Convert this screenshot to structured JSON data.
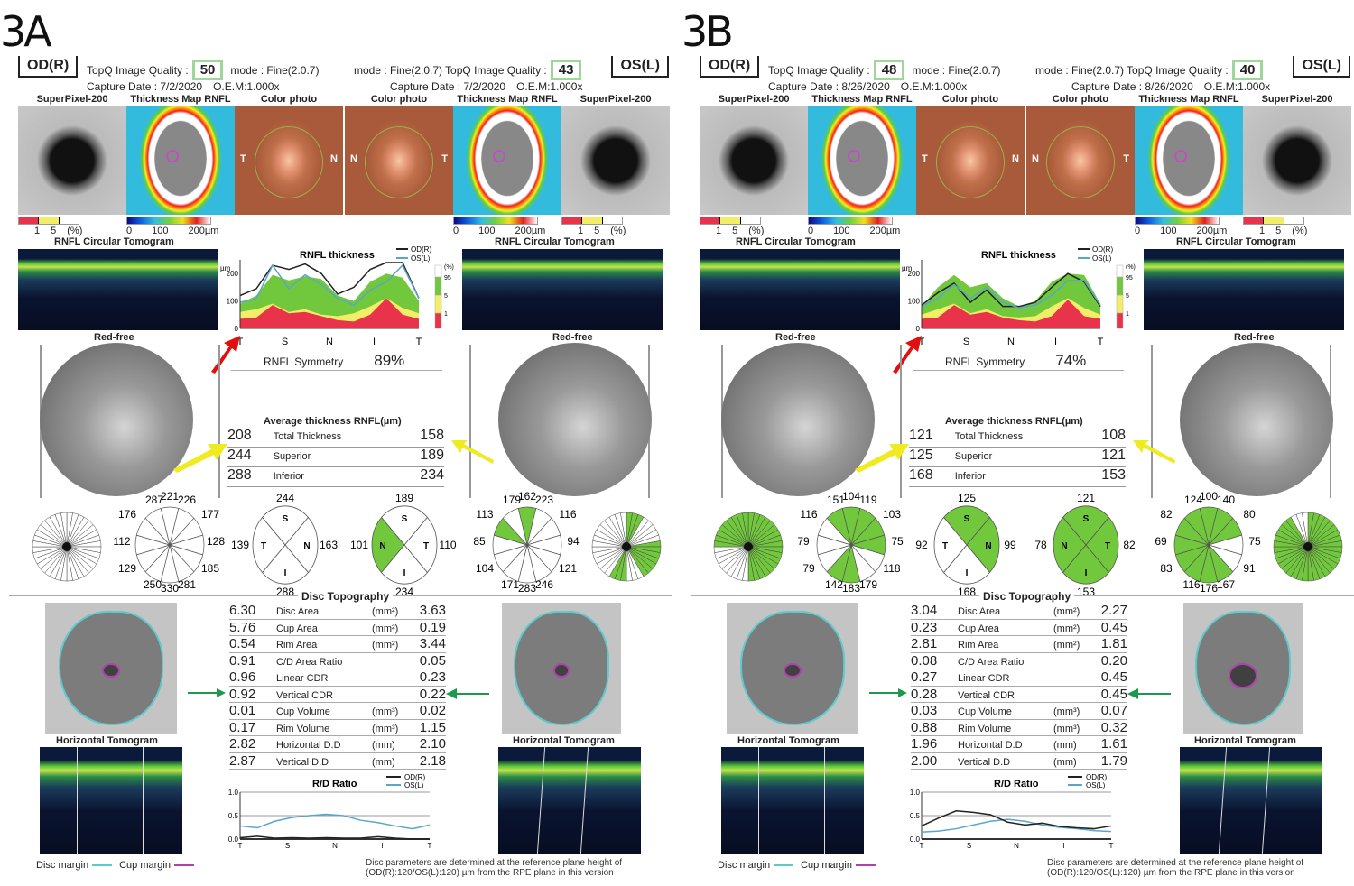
{
  "panels": [
    {
      "id": "A",
      "label": "3A",
      "od": {
        "eye": "OD(R)",
        "quality_label": "TopQ Image Quality :",
        "quality": "50",
        "mode": "mode : Fine(2.0.7)",
        "capture": "Capture Date : 7/2/2020",
        "oem": "O.E.M:1.000x"
      },
      "os": {
        "eye": "OS(L)",
        "quality_label": "TopQ Image Quality :",
        "quality": "43",
        "mode": "mode : Fine(2.0.7)",
        "capture": "Capture Date : 7/2/2020",
        "oem": "O.E.M:1.000x"
      },
      "image_titles": [
        "SuperPixel-200",
        "Thickness Map RNFL",
        "Color photo",
        "Color photo",
        "Thickness Map RNFL",
        "SuperPixel-200"
      ],
      "photo_marks": {
        "od_left": "T",
        "od_right": "N",
        "os_left": "N",
        "os_right": "T"
      },
      "scale_pct": [
        "1",
        "5",
        "(%)"
      ],
      "scale_um": [
        "0",
        "100",
        "200µm"
      ],
      "tomogram_title": "RNFL Circular Tomogram",
      "redfree_title": "Red-free",
      "rnfl_chart": {
        "title": "RNFL thickness",
        "legend": [
          "OD(R)",
          "OS(L)"
        ],
        "yunit": "µm",
        "yticks": [
          "200",
          "100",
          "0"
        ],
        "xticks": [
          "T",
          "S",
          "N",
          "I",
          "T"
        ],
        "pct_labels": [
          "(%)",
          "95",
          "5",
          "1"
        ],
        "od": [
          120,
          145,
          230,
          215,
          235,
          200,
          125,
          150,
          215,
          260,
          250,
          110
        ],
        "os": [
          95,
          110,
          230,
          145,
          195,
          160,
          110,
          85,
          140,
          170,
          230,
          110
        ],
        "normal_upper": [
          90,
          120,
          195,
          175,
          190,
          180,
          120,
          100,
          170,
          200,
          185,
          100
        ],
        "normal_lower": [
          60,
          70,
          90,
          60,
          70,
          50,
          45,
          55,
          80,
          110,
          75,
          55
        ],
        "red_top": [
          35,
          40,
          85,
          55,
          60,
          45,
          30,
          25,
          50,
          110,
          50,
          35
        ]
      },
      "symmetry_label": "RNFL Symmetry",
      "symmetry": "89%",
      "avg": {
        "title": "Average thickness RNFL(µm)",
        "rows": [
          {
            "od": "208",
            "label": "Total Thickness",
            "os": "158"
          },
          {
            "od": "244",
            "label": "Superior",
            "os": "189"
          },
          {
            "od": "288",
            "label": "Inferior",
            "os": "234"
          }
        ]
      },
      "sectors": {
        "od12": {
          "top": [
            "287",
            "221",
            "226"
          ],
          "right": [
            "177",
            "128",
            "185"
          ],
          "bottom": [
            "250",
            "330",
            "281"
          ],
          "left": [
            "176",
            "112",
            "129"
          ]
        },
        "od4": {
          "S": "244",
          "T": "139",
          "N": "163",
          "I": "288",
          "letters": [
            "S",
            "T",
            "N",
            "I"
          ]
        },
        "os4": {
          "S": "189",
          "N": "101",
          "T": "110",
          "I": "234",
          "letters": [
            "S",
            "N",
            "T",
            "I"
          ]
        },
        "os12": {
          "top": [
            "179",
            "162",
            "223"
          ],
          "right": [
            "116",
            "94",
            "121"
          ],
          "bottom": [
            "171",
            "283",
            "246"
          ],
          "left": [
            "113",
            "85",
            "104"
          ]
        },
        "od12_green": [],
        "od4_green": [],
        "os4_green": [
          "N"
        ],
        "os12_green": [
          0,
          10
        ],
        "od36_green": [],
        "os36_green": [
          0,
          1,
          2,
          8,
          9,
          10,
          11,
          12,
          13,
          14,
          18,
          19,
          20
        ]
      },
      "disc": {
        "title": "Disc Topography",
        "rows": [
          {
            "od": "6.30",
            "label": "Disc Area",
            "unit": "(mm²)",
            "os": "3.63"
          },
          {
            "od": "5.76",
            "label": "Cup Area",
            "unit": "(mm²)",
            "os": "0.19"
          },
          {
            "od": "0.54",
            "label": "Rim Area",
            "unit": "(mm²)",
            "os": "3.44"
          },
          {
            "od": "0.91",
            "label": "C/D Area Ratio",
            "unit": "",
            "os": "0.05"
          },
          {
            "od": "0.96",
            "label": "Linear CDR",
            "unit": "",
            "os": "0.23"
          },
          {
            "od": "0.92",
            "label": "Vertical CDR",
            "unit": "",
            "os": "0.22"
          },
          {
            "od": "0.01",
            "label": "Cup Volume",
            "unit": "(mm³)",
            "os": "0.02"
          },
          {
            "od": "0.17",
            "label": "Rim Volume",
            "unit": "(mm³)",
            "os": "1.15"
          },
          {
            "od": "2.82",
            "label": "Horizontal D.D",
            "unit": "(mm)",
            "os": "2.10"
          },
          {
            "od": "2.87",
            "label": "Vertical D.D",
            "unit": "(mm)",
            "os": "2.18"
          }
        ]
      },
      "horiz_title": "Horizontal Tomogram",
      "rd_chart": {
        "title": "R/D Ratio",
        "legend": [
          "OD(R)",
          "OS(L)"
        ],
        "yticks": [
          "1.0",
          "0.5",
          "0.0"
        ],
        "xticks": [
          "T",
          "S",
          "N",
          "I",
          "T"
        ],
        "od": [
          0.03,
          0.06,
          0.02,
          0.03,
          0.02,
          0.03,
          0.02,
          0.02,
          0.05,
          0.02,
          0.0,
          0.0
        ],
        "os": [
          0.28,
          0.24,
          0.38,
          0.46,
          0.5,
          0.53,
          0.5,
          0.4,
          0.35,
          0.28,
          0.22,
          0.3
        ]
      },
      "legend_disc": "Disc margin",
      "legend_cup": "Cup margin",
      "footnote1": "Disc parameters are determined at the reference plane height of",
      "footnote2": "(OD(R):120/OS(L):120) µm from the RPE plane in this version"
    },
    {
      "id": "B",
      "label": "3B",
      "od": {
        "eye": "OD(R)",
        "quality_label": "TopQ Image Quality :",
        "quality": "48",
        "mode": "mode : Fine(2.0.7)",
        "capture": "Capture Date : 8/26/2020",
        "oem": "O.E.M:1.000x"
      },
      "os": {
        "eye": "OS(L)",
        "quality_label": "TopQ Image Quality :",
        "quality": "40",
        "mode": "mode : Fine(2.0.7)",
        "capture": "Capture Date : 8/26/2020",
        "oem": "O.E.M:1.000x"
      },
      "image_titles": [
        "SuperPixel-200",
        "Thickness Map RNFL",
        "Color photo",
        "Color photo",
        "Thickness Map RNFL",
        "SuperPixel-200"
      ],
      "photo_marks": {
        "od_left": "T",
        "od_right": "N",
        "os_left": "N",
        "os_right": "T"
      },
      "scale_pct": [
        "1",
        "5",
        "(%)"
      ],
      "scale_um": [
        "0",
        "100",
        "200µm"
      ],
      "tomogram_title": "RNFL Circular Tomogram",
      "redfree_title": "Red-free",
      "rnfl_chart": {
        "title": "RNFL thickness",
        "legend": [
          "OD(R)",
          "OS(L)"
        ],
        "yunit": "µm",
        "yticks": [
          "200",
          "100",
          "0"
        ],
        "xticks": [
          "T",
          "S",
          "N",
          "I",
          "T"
        ],
        "pct_labels": [
          "(%)",
          "95",
          "5",
          "1"
        ],
        "od": [
          85,
          130,
          165,
          95,
          140,
          80,
          80,
          95,
          150,
          200,
          170,
          80
        ],
        "os": [
          80,
          110,
          160,
          110,
          150,
          95,
          75,
          85,
          120,
          175,
          175,
          85
        ],
        "normal_upper": [
          80,
          150,
          195,
          150,
          165,
          110,
          80,
          100,
          170,
          200,
          195,
          90
        ],
        "normal_lower": [
          50,
          70,
          90,
          55,
          70,
          45,
          40,
          45,
          80,
          110,
          75,
          50
        ],
        "red_top": [
          35,
          40,
          85,
          50,
          60,
          40,
          30,
          25,
          45,
          105,
          45,
          35
        ]
      },
      "symmetry_label": "RNFL Symmetry",
      "symmetry": "74%",
      "avg": {
        "title": "Average thickness RNFL(µm)",
        "rows": [
          {
            "od": "121",
            "label": "Total Thickness",
            "os": "108"
          },
          {
            "od": "125",
            "label": "Superior",
            "os": "121"
          },
          {
            "od": "168",
            "label": "Inferior",
            "os": "153"
          }
        ]
      },
      "sectors": {
        "od12": {
          "top": [
            "151",
            "104",
            "119"
          ],
          "right": [
            "103",
            "75",
            "118"
          ],
          "bottom": [
            "142",
            "183",
            "179"
          ],
          "left": [
            "116",
            "79",
            "79"
          ]
        },
        "od4": {
          "S": "125",
          "T": "92",
          "N": "99",
          "I": "168",
          "letters": [
            "S",
            "T",
            "N",
            "I"
          ]
        },
        "os4": {
          "S": "121",
          "N": "78",
          "T": "82",
          "I": "153",
          "letters": [
            "S",
            "N",
            "T",
            "I"
          ]
        },
        "os12": {
          "top": [
            "124",
            "100",
            "140"
          ],
          "right": [
            "80",
            "75",
            "91"
          ],
          "bottom": [
            "116",
            "176",
            "167"
          ],
          "left": [
            "82",
            "69",
            "83"
          ]
        },
        "od12_green": [
          0,
          1,
          2,
          3,
          6,
          7,
          11
        ],
        "od4_green": [
          "S",
          "N"
        ],
        "os4_green": [
          "S",
          "N",
          "T",
          "I"
        ],
        "os12_green": [
          0,
          1,
          2,
          5,
          6,
          7,
          8,
          9,
          10,
          11
        ],
        "od36_green": [
          0,
          1,
          2,
          3,
          4,
          5,
          6,
          7,
          8,
          9,
          10,
          11,
          12,
          13,
          14,
          15,
          16,
          17,
          27,
          28,
          29,
          30,
          31,
          32,
          33,
          34,
          35
        ],
        "os36_green": [
          0,
          1,
          2,
          3,
          4,
          5,
          6,
          7,
          8,
          9,
          10,
          11,
          12,
          13,
          14,
          15,
          16,
          17,
          18,
          19,
          20,
          21,
          22,
          23,
          24,
          25,
          26,
          27,
          28,
          29,
          30,
          31,
          32
        ]
      },
      "disc": {
        "title": "Disc Topography",
        "rows": [
          {
            "od": "3.04",
            "label": "Disc Area",
            "unit": "(mm²)",
            "os": "2.27"
          },
          {
            "od": "0.23",
            "label": "Cup Area",
            "unit": "(mm²)",
            "os": "0.45"
          },
          {
            "od": "2.81",
            "label": "Rim Area",
            "unit": "(mm²)",
            "os": "1.81"
          },
          {
            "od": "0.08",
            "label": "C/D Area Ratio",
            "unit": "",
            "os": "0.20"
          },
          {
            "od": "0.27",
            "label": "Linear CDR",
            "unit": "",
            "os": "0.45"
          },
          {
            "od": "0.28",
            "label": "Vertical CDR",
            "unit": "",
            "os": "0.45"
          },
          {
            "od": "0.03",
            "label": "Cup Volume",
            "unit": "(mm³)",
            "os": "0.07"
          },
          {
            "od": "0.88",
            "label": "Rim Volume",
            "unit": "(mm³)",
            "os": "0.32"
          },
          {
            "od": "1.96",
            "label": "Horizontal D.D",
            "unit": "(mm)",
            "os": "1.61"
          },
          {
            "od": "2.00",
            "label": "Vertical D.D",
            "unit": "(mm)",
            "os": "1.79"
          }
        ]
      },
      "horiz_title": "Horizontal Tomogram",
      "rd_chart": {
        "title": "R/D Ratio",
        "legend": [
          "OD(R)",
          "OS(L)"
        ],
        "yticks": [
          "1.0",
          "0.5",
          "0.0"
        ],
        "xticks": [
          "T",
          "S",
          "N",
          "I",
          "T"
        ],
        "od": [
          0.28,
          0.45,
          0.6,
          0.57,
          0.52,
          0.36,
          0.3,
          0.34,
          0.27,
          0.24,
          0.22,
          0.28
        ],
        "os": [
          0.15,
          0.17,
          0.22,
          0.3,
          0.38,
          0.42,
          0.38,
          0.3,
          0.25,
          0.22,
          0.18,
          0.16
        ]
      },
      "legend_disc": "Disc margin",
      "legend_cup": "Cup margin",
      "footnote1": "Disc parameters are determined at the reference plane height of",
      "footnote2": "(OD(R):120/OS(L):120) µm from the RPE plane in this version"
    }
  ],
  "colors": {
    "green": "#72c83c",
    "red": "#e8334a",
    "yellow": "#f2ee6a",
    "od_line": "#222222",
    "os_line": "#5aa6c8",
    "disc_margin": "#5ec9c9",
    "cup_margin": "#b040b0",
    "arrow_red": "#e01010",
    "arrow_yellow": "#f0ea20",
    "arrow_green": "#1a9a4a"
  }
}
